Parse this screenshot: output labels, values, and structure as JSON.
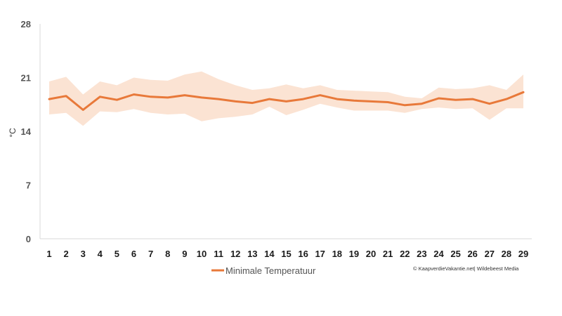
{
  "chart_data": {
    "type": "line",
    "x": [
      1,
      2,
      3,
      4,
      5,
      6,
      7,
      8,
      9,
      10,
      11,
      12,
      13,
      14,
      15,
      16,
      17,
      18,
      19,
      20,
      21,
      22,
      23,
      24,
      25,
      26,
      27,
      28,
      29
    ],
    "series": [
      {
        "name": "Minimale Temperatuur",
        "values": [
          18.2,
          18.6,
          16.8,
          18.5,
          18.1,
          18.8,
          18.5,
          18.4,
          18.7,
          18.4,
          18.2,
          17.9,
          17.7,
          18.2,
          17.9,
          18.2,
          18.7,
          18.2,
          18.0,
          17.9,
          17.8,
          17.4,
          17.6,
          18.3,
          18.1,
          18.2,
          17.6,
          18.2,
          19.1
        ],
        "band_upper": [
          20.5,
          21.1,
          18.8,
          20.5,
          20.0,
          21.0,
          20.7,
          20.6,
          21.4,
          21.8,
          20.8,
          20.0,
          19.4,
          19.6,
          20.1,
          19.6,
          20.0,
          19.4,
          19.3,
          19.2,
          19.1,
          18.5,
          18.3,
          19.7,
          19.5,
          19.6,
          20.0,
          19.4,
          21.4
        ],
        "band_lower": [
          16.2,
          16.4,
          14.7,
          16.6,
          16.5,
          16.9,
          16.4,
          16.2,
          16.3,
          15.3,
          15.7,
          15.9,
          16.2,
          17.2,
          16.1,
          16.8,
          17.6,
          17.1,
          16.7,
          16.7,
          16.7,
          16.4,
          16.9,
          17.1,
          16.9,
          17.0,
          15.5,
          17.0,
          17.0
        ]
      }
    ],
    "ylabel": "°C",
    "ylim": [
      0,
      28
    ],
    "yticks": [
      0,
      7,
      14,
      21,
      28
    ],
    "legend": {
      "position": "bottom",
      "label": "Minimale Temperatuur"
    },
    "colors": {
      "line": "#e8793a",
      "band": "#fbe3d3",
      "axis": "#d9d9d9"
    }
  },
  "credit": "© KaapverdieVakantie.net| Wildebeest Media"
}
